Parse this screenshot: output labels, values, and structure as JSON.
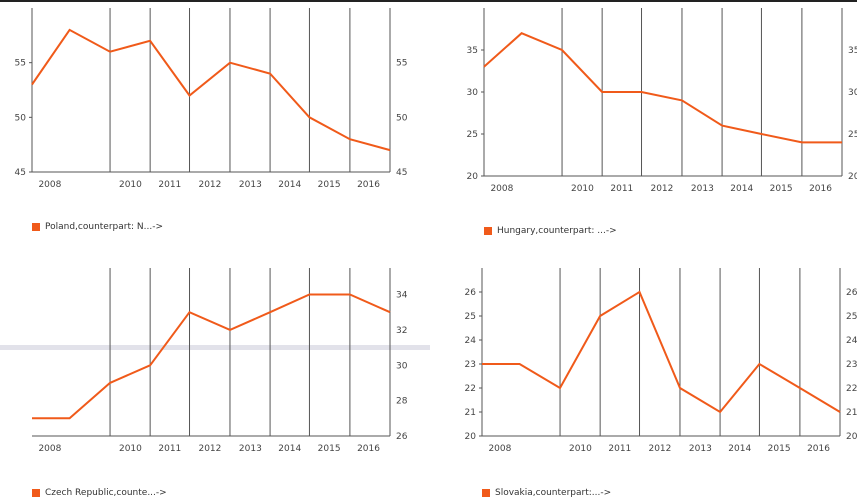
{
  "chart_data": [
    {
      "type": "line",
      "categories": [
        "2008",
        "2009",
        "2010",
        "2011",
        "2012",
        "2013",
        "2014",
        "2015",
        "2016",
        "2017"
      ],
      "x_tick_labels": [
        "2008",
        "2010",
        "2011",
        "2012",
        "2013",
        "2014",
        "2015",
        "2016"
      ],
      "y_ticks": [
        45,
        50,
        55
      ],
      "ylim": [
        45,
        60
      ],
      "series": [
        {
          "name": "Poland,counterpart: N...->",
          "values": [
            53,
            58,
            56,
            57,
            52,
            55,
            54,
            50,
            48,
            47
          ]
        }
      ],
      "color": "#f05a1a",
      "legend_placement": "bottom-left"
    },
    {
      "type": "line",
      "categories": [
        "2008",
        "2009",
        "2010",
        "2011",
        "2012",
        "2013",
        "2014",
        "2015",
        "2016",
        "2017"
      ],
      "x_tick_labels": [
        "2008",
        "2010",
        "2011",
        "2012",
        "2013",
        "2014",
        "2015",
        "2016"
      ],
      "y_ticks": [
        20,
        25,
        30,
        35
      ],
      "ylim": [
        20,
        40
      ],
      "series": [
        {
          "name": "Hungary,counterpart: ...->",
          "values": [
            33,
            37,
            35,
            30,
            30,
            29,
            26,
            25,
            24,
            24
          ]
        }
      ],
      "color": "#f05a1a",
      "legend_placement": "bottom-left"
    },
    {
      "type": "line",
      "categories": [
        "2008",
        "2009",
        "2010",
        "2011",
        "2012",
        "2013",
        "2014",
        "2015",
        "2016",
        "2017"
      ],
      "x_tick_labels": [
        "2008",
        "2010",
        "2011",
        "2012",
        "2013",
        "2014",
        "2015",
        "2016"
      ],
      "y_ticks": [
        26,
        28,
        30,
        32,
        34
      ],
      "ylim": [
        26,
        35.5
      ],
      "series": [
        {
          "name": "Czech Republic,counte...->",
          "values": [
            27,
            27,
            29,
            30,
            33,
            32,
            33,
            34,
            34,
            33
          ]
        }
      ],
      "color": "#f05a1a",
      "legend_placement": "bottom-left"
    },
    {
      "type": "line",
      "categories": [
        "2008",
        "2009",
        "2010",
        "2011",
        "2012",
        "2013",
        "2014",
        "2015",
        "2016",
        "2017"
      ],
      "x_tick_labels": [
        "2008",
        "2010",
        "2011",
        "2012",
        "2013",
        "2014",
        "2015",
        "2016"
      ],
      "y_ticks": [
        20,
        21,
        22,
        23,
        24,
        25,
        26
      ],
      "ylim": [
        20,
        27
      ],
      "series": [
        {
          "name": "Slovakia,counterpart:...->",
          "values": [
            23,
            23,
            22,
            25,
            26,
            22,
            21,
            23,
            22,
            21
          ]
        }
      ],
      "color": "#f05a1a",
      "legend_placement": "bottom-left"
    }
  ]
}
